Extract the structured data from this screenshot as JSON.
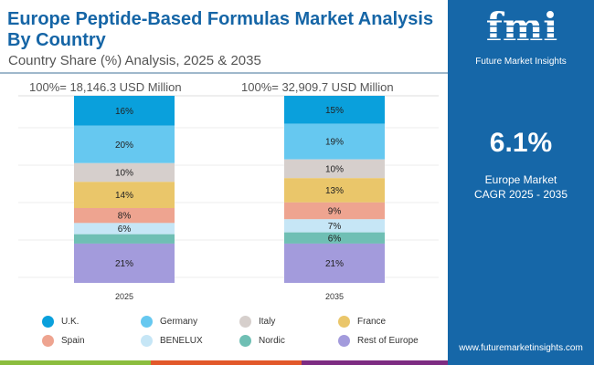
{
  "header": {
    "title": "Europe Peptide-Based Formulas Market Analysis By Country",
    "subtitle": "Country Share (%) Analysis, 2025 & 2035"
  },
  "brand": {
    "name": "Future Market Insights",
    "logo_letters": "fmi",
    "url": "www.futuremarketinsights.com"
  },
  "kpi": {
    "value": "6.1%",
    "line1": "Europe Market",
    "line2": "CAGR 2025 - 2035"
  },
  "colors": {
    "accent": "#1667a8",
    "stripe": [
      "#8bbd3e",
      "#e2582a",
      "#7d2c82"
    ]
  },
  "chart_data": {
    "type": "bar",
    "stacked": true,
    "orientation": "vertical",
    "categories": [
      "2025",
      "2035"
    ],
    "totals": [
      "100%= 18,146.3 USD Million",
      "100%= 32,909.7 USD Million"
    ],
    "ylim": [
      0,
      100
    ],
    "series": [
      {
        "name": "U.K.",
        "color": "#0aa0dc",
        "values": [
          16,
          15
        ],
        "labels": [
          "16%",
          "15%"
        ]
      },
      {
        "name": "Germany",
        "color": "#66c8f0",
        "values": [
          20,
          19
        ],
        "labels": [
          "20%",
          "19%"
        ]
      },
      {
        "name": "Italy",
        "color": "#d6cfcc",
        "values": [
          10,
          10
        ],
        "labels": [
          "10%",
          "10%"
        ]
      },
      {
        "name": "France",
        "color": "#eac66a",
        "values": [
          14,
          13
        ],
        "labels": [
          "14%",
          "13%"
        ]
      },
      {
        "name": "Spain",
        "color": "#eea490",
        "values": [
          8,
          9
        ],
        "labels": [
          "8%",
          "9%"
        ]
      },
      {
        "name": "BENELUX",
        "color": "#c6e6f6",
        "values": [
          6,
          7
        ],
        "labels": [
          "6%",
          "7%"
        ]
      },
      {
        "name": "Nordic",
        "color": "#6fbfb4",
        "values": [
          5,
          6
        ],
        "labels": [
          "",
          "6%"
        ]
      },
      {
        "name": "Rest of Europe",
        "color": "#a39bdc",
        "values": [
          21,
          21
        ],
        "labels": [
          "21%",
          "21%"
        ]
      }
    ],
    "legend": "bottom"
  }
}
